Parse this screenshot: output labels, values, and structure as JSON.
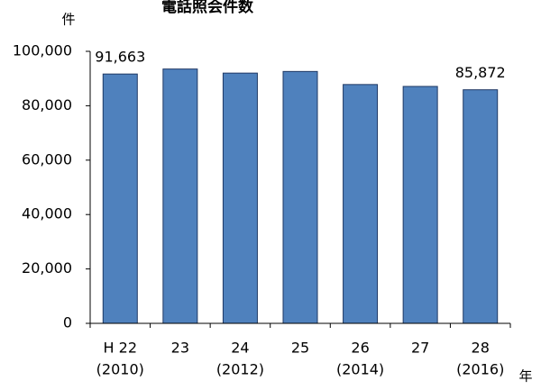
{
  "chart_data": {
    "type": "bar",
    "title": "電話照会件数",
    "ylabel": "件",
    "xlabel": "年",
    "categories": [
      {
        "line1": "H 22",
        "line2": "(2010)"
      },
      {
        "line1": "23",
        "line2": ""
      },
      {
        "line1": "24",
        "line2": "(2012)"
      },
      {
        "line1": "25",
        "line2": ""
      },
      {
        "line1": "26",
        "line2": "(2014)"
      },
      {
        "line1": "27",
        "line2": ""
      },
      {
        "line1": "28",
        "line2": "(2016)"
      }
    ],
    "values": [
      91663,
      93500,
      92000,
      92600,
      87800,
      87100,
      85872
    ],
    "data_labels": [
      "91,663",
      "",
      "",
      "",
      "",
      "",
      "85,872"
    ],
    "ylim": [
      0,
      100000
    ],
    "yticks": [
      0,
      20000,
      40000,
      60000,
      80000,
      100000
    ],
    "ytick_labels": [
      "0",
      "20,000",
      "40,000",
      "60,000",
      "80,000",
      "100,000"
    ],
    "grid": false,
    "bar_color": "#4f81bd",
    "bar_edge_color": "#1f3864"
  }
}
